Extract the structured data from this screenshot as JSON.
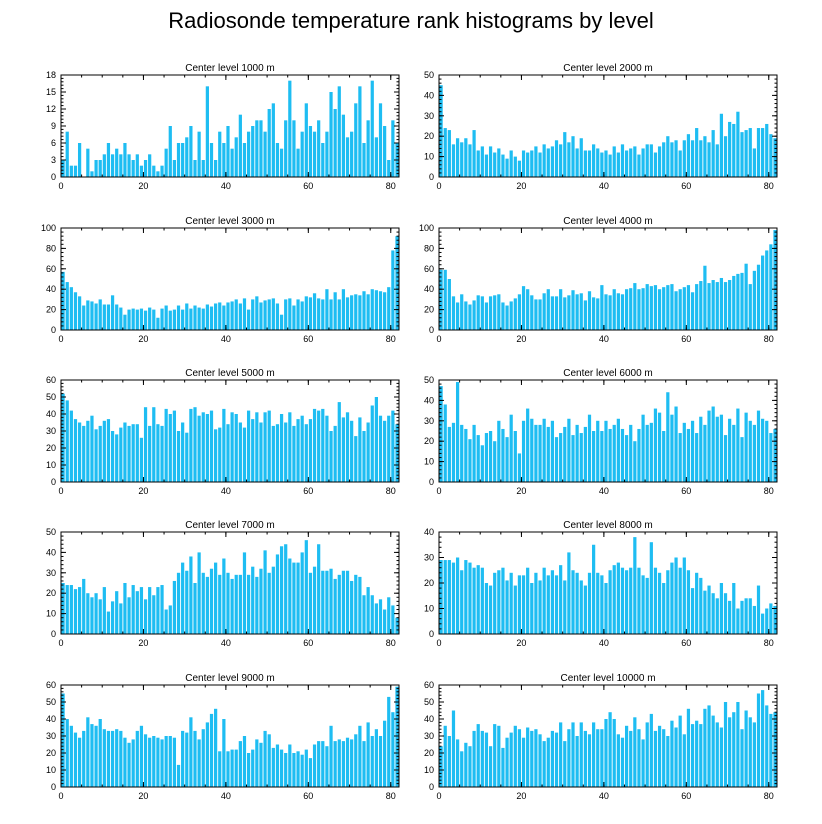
{
  "title": "Radiosonde temperature rank histograms by level",
  "colors": {
    "bar": "#1ebdf2",
    "axis": "#000000"
  },
  "chart_data": [
    {
      "type": "bar",
      "title": "Center level 1000 m",
      "xlim": [
        0,
        82
      ],
      "xticks": [
        0,
        20,
        40,
        60,
        80
      ],
      "ylim": [
        0,
        18
      ],
      "yticks": [
        0,
        3,
        6,
        9,
        12,
        15,
        18
      ],
      "values": [
        3,
        8,
        2,
        2,
        6,
        0,
        5,
        1,
        3,
        3,
        4,
        6,
        4,
        5,
        4,
        6,
        4,
        3,
        4,
        2,
        3,
        4,
        2,
        1,
        2,
        5,
        9,
        3,
        6,
        6,
        7,
        9,
        3,
        8,
        3,
        16,
        6,
        3,
        8,
        6,
        9,
        5,
        7,
        11,
        6,
        8,
        9,
        10,
        10,
        8,
        12,
        13,
        6,
        5,
        10,
        17,
        10,
        5,
        8,
        13,
        9,
        8,
        10,
        6,
        8,
        15,
        12,
        16,
        11,
        7,
        8,
        13,
        16,
        6,
        10,
        17,
        7,
        13,
        9,
        3,
        10,
        6
      ]
    },
    {
      "type": "bar",
      "title": "Center level 2000 m",
      "xlim": [
        0,
        82
      ],
      "xticks": [
        0,
        20,
        40,
        60,
        80
      ],
      "ylim": [
        0,
        50
      ],
      "yticks": [
        0,
        10,
        20,
        30,
        40,
        50
      ],
      "values": [
        45,
        24,
        23,
        16,
        19,
        17,
        19,
        16,
        23,
        13,
        15,
        11,
        15,
        12,
        14,
        11,
        9,
        13,
        10,
        8,
        13,
        12,
        13,
        15,
        12,
        16,
        14,
        15,
        18,
        16,
        22,
        17,
        20,
        14,
        19,
        13,
        13,
        16,
        14,
        12,
        13,
        11,
        15,
        12,
        16,
        13,
        14,
        15,
        11,
        14,
        16,
        16,
        12,
        15,
        17,
        20,
        17,
        18,
        13,
        18,
        21,
        18,
        24,
        18,
        20,
        17,
        23,
        16,
        31,
        20,
        27,
        26,
        32,
        22,
        23,
        24,
        14,
        24,
        24,
        26,
        21,
        19
      ]
    },
    {
      "type": "bar",
      "title": "Center level 3000 m",
      "xlim": [
        0,
        82
      ],
      "xticks": [
        0,
        20,
        40,
        60,
        80
      ],
      "ylim": [
        0,
        100
      ],
      "yticks": [
        0,
        20,
        40,
        60,
        80,
        100
      ],
      "values": [
        57,
        47,
        42,
        37,
        33,
        24,
        29,
        28,
        26,
        30,
        25,
        25,
        34,
        25,
        22,
        15,
        20,
        21,
        20,
        21,
        19,
        22,
        20,
        12,
        21,
        24,
        19,
        20,
        24,
        20,
        26,
        21,
        24,
        22,
        21,
        25,
        23,
        26,
        27,
        24,
        27,
        28,
        30,
        26,
        31,
        20,
        30,
        33,
        27,
        29,
        30,
        31,
        26,
        15,
        30,
        31,
        24,
        30,
        28,
        33,
        32,
        36,
        31,
        30,
        40,
        30,
        37,
        30,
        40,
        32,
        34,
        35,
        34,
        38,
        35,
        40,
        39,
        38,
        37,
        42,
        78,
        92
      ]
    },
    {
      "type": "bar",
      "title": "Center level 4000 m",
      "xlim": [
        0,
        82
      ],
      "xticks": [
        0,
        20,
        40,
        60,
        80
      ],
      "ylim": [
        0,
        100
      ],
      "yticks": [
        0,
        20,
        40,
        60,
        80,
        100
      ],
      "values": [
        59,
        59,
        50,
        33,
        27,
        35,
        28,
        25,
        29,
        34,
        33,
        27,
        33,
        34,
        35,
        27,
        24,
        28,
        31,
        35,
        43,
        40,
        34,
        30,
        30,
        36,
        40,
        33,
        33,
        40,
        32,
        34,
        39,
        35,
        36,
        29,
        38,
        32,
        31,
        44,
        35,
        34,
        40,
        36,
        35,
        40,
        41,
        46,
        40,
        41,
        45,
        43,
        44,
        40,
        42,
        44,
        45,
        38,
        40,
        42,
        44,
        37,
        45,
        48,
        63,
        46,
        49,
        47,
        51,
        47,
        49,
        53,
        55,
        56,
        65,
        45,
        58,
        64,
        73,
        78,
        84,
        98
      ]
    },
    {
      "type": "bar",
      "title": "Center level 5000 m",
      "xlim": [
        0,
        82
      ],
      "xticks": [
        0,
        20,
        40,
        60,
        80
      ],
      "ylim": [
        0,
        60
      ],
      "yticks": [
        0,
        10,
        20,
        30,
        40,
        50,
        60
      ],
      "values": [
        52,
        48,
        42,
        37,
        35,
        33,
        36,
        39,
        31,
        33,
        36,
        37,
        30,
        28,
        32,
        35,
        33,
        34,
        34,
        26,
        44,
        33,
        44,
        34,
        33,
        43,
        40,
        42,
        30,
        35,
        29,
        43,
        44,
        39,
        41,
        40,
        42,
        31,
        32,
        43,
        34,
        41,
        40,
        35,
        32,
        42,
        37,
        41,
        35,
        41,
        42,
        33,
        34,
        40,
        35,
        41,
        33,
        37,
        39,
        34,
        37,
        43,
        42,
        43,
        39,
        30,
        33,
        47,
        38,
        41,
        36,
        27,
        38,
        30,
        35,
        45,
        50,
        39,
        36,
        39,
        42,
        34
      ]
    },
    {
      "type": "bar",
      "title": "Center level 6000 m",
      "xlim": [
        0,
        82
      ],
      "xticks": [
        0,
        20,
        40,
        60,
        80
      ],
      "ylim": [
        0,
        50
      ],
      "yticks": [
        0,
        10,
        20,
        30,
        40,
        50
      ],
      "values": [
        47,
        38,
        27,
        29,
        49,
        28,
        26,
        21,
        28,
        23,
        18,
        24,
        25,
        20,
        30,
        26,
        22,
        33,
        25,
        14,
        30,
        36,
        31,
        28,
        28,
        31,
        27,
        30,
        22,
        24,
        27,
        31,
        23,
        28,
        24,
        27,
        33,
        25,
        30,
        25,
        30,
        26,
        28,
        31,
        26,
        23,
        28,
        20,
        26,
        33,
        28,
        29,
        36,
        34,
        25,
        44,
        33,
        37,
        24,
        29,
        26,
        30,
        24,
        32,
        28,
        35,
        37,
        32,
        33,
        23,
        31,
        28,
        36,
        22,
        34,
        30,
        28,
        35,
        31,
        30,
        24,
        26
      ]
    },
    {
      "type": "bar",
      "title": "Center level 7000 m",
      "xlim": [
        0,
        82
      ],
      "xticks": [
        0,
        20,
        40,
        60,
        80
      ],
      "ylim": [
        0,
        50
      ],
      "yticks": [
        0,
        10,
        20,
        30,
        40,
        50
      ],
      "values": [
        25,
        24,
        24,
        22,
        23,
        27,
        20,
        18,
        20,
        17,
        23,
        11,
        16,
        21,
        15,
        25,
        18,
        24,
        21,
        23,
        17,
        23,
        19,
        23,
        24,
        12,
        14,
        26,
        30,
        35,
        31,
        38,
        25,
        40,
        30,
        28,
        32,
        35,
        29,
        37,
        30,
        27,
        29,
        29,
        40,
        29,
        33,
        28,
        32,
        41,
        30,
        33,
        39,
        43,
        44,
        37,
        35,
        35,
        40,
        46,
        30,
        33,
        44,
        31,
        31,
        32,
        27,
        29,
        31,
        31,
        26,
        29,
        28,
        19,
        23,
        19,
        15,
        17,
        12,
        18,
        14,
        8
      ]
    },
    {
      "type": "bar",
      "title": "Center level 8000 m",
      "xlim": [
        0,
        82
      ],
      "xticks": [
        0,
        20,
        40,
        60,
        80
      ],
      "ylim": [
        0,
        40
      ],
      "yticks": [
        0,
        10,
        20,
        30,
        40
      ],
      "values": [
        29,
        29,
        29,
        28,
        30,
        25,
        29,
        28,
        26,
        27,
        26,
        20,
        19,
        24,
        25,
        26,
        21,
        24,
        19,
        23,
        23,
        26,
        20,
        24,
        21,
        26,
        23,
        25,
        23,
        27,
        21,
        32,
        25,
        24,
        21,
        19,
        24,
        35,
        24,
        23,
        20,
        25,
        27,
        28,
        26,
        25,
        26,
        38,
        26,
        23,
        22,
        36,
        26,
        24,
        20,
        25,
        28,
        30,
        26,
        30,
        25,
        18,
        24,
        22,
        17,
        19,
        16,
        14,
        20,
        16,
        13,
        20,
        10,
        13,
        14,
        14,
        11,
        19,
        8,
        10,
        12,
        11
      ]
    },
    {
      "type": "bar",
      "title": "Center level 9000 m",
      "xlim": [
        0,
        82
      ],
      "xticks": [
        0,
        20,
        40,
        60,
        80
      ],
      "ylim": [
        0,
        60
      ],
      "yticks": [
        0,
        10,
        20,
        30,
        40,
        50,
        60
      ],
      "values": [
        55,
        40,
        36,
        32,
        29,
        33,
        41,
        37,
        36,
        40,
        34,
        33,
        33,
        34,
        33,
        29,
        26,
        28,
        33,
        36,
        31,
        29,
        30,
        29,
        28,
        30,
        30,
        29,
        13,
        33,
        32,
        41,
        33,
        28,
        34,
        38,
        43,
        46,
        21,
        40,
        21,
        22,
        22,
        27,
        30,
        20,
        22,
        28,
        26,
        33,
        31,
        23,
        25,
        22,
        20,
        25,
        20,
        21,
        19,
        22,
        17,
        25,
        27,
        27,
        24,
        36,
        27,
        28,
        27,
        29,
        28,
        31,
        36,
        27,
        38,
        30,
        34,
        30,
        39,
        53,
        44,
        59
      ]
    },
    {
      "type": "bar",
      "title": "Center level 10000 m",
      "xlim": [
        0,
        82
      ],
      "xticks": [
        0,
        20,
        40,
        60,
        80
      ],
      "ylim": [
        0,
        60
      ],
      "yticks": [
        0,
        10,
        20,
        30,
        40,
        50,
        60
      ],
      "values": [
        24,
        36,
        30,
        45,
        28,
        21,
        26,
        24,
        33,
        37,
        33,
        32,
        24,
        37,
        36,
        23,
        29,
        32,
        36,
        34,
        29,
        35,
        33,
        34,
        31,
        27,
        29,
        33,
        32,
        38,
        27,
        34,
        38,
        30,
        38,
        33,
        31,
        38,
        34,
        34,
        40,
        44,
        40,
        31,
        29,
        36,
        33,
        41,
        34,
        28,
        38,
        43,
        33,
        36,
        34,
        30,
        39,
        35,
        42,
        31,
        46,
        37,
        39,
        37,
        46,
        48,
        42,
        38,
        35,
        50,
        41,
        44,
        50,
        34,
        45,
        41,
        38,
        55,
        57,
        48,
        43,
        44
      ]
    }
  ]
}
